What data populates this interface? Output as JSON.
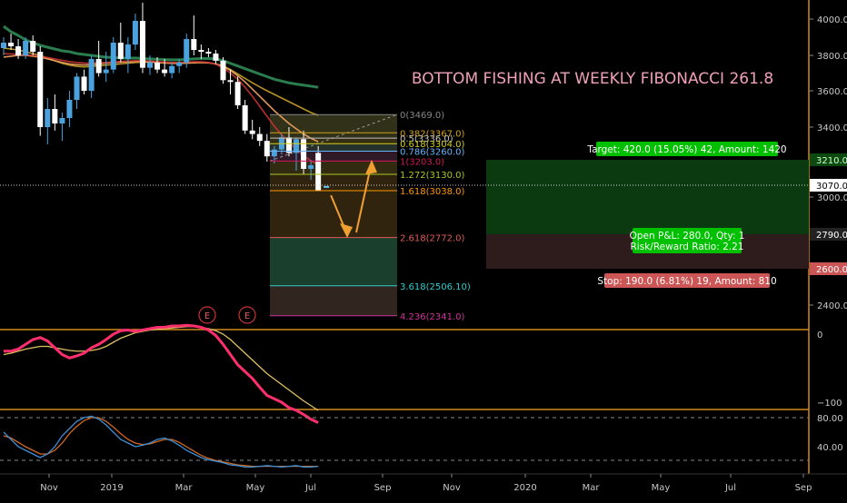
{
  "chart_data": {
    "type": "candlestick",
    "title": "BOTTOM FISHING AT WEEKLY FIBONACCI 261.8",
    "x_tick_labels": [
      "Nov",
      "2019",
      "Mar",
      "May",
      "Jul",
      "Sep",
      "Nov",
      "2020",
      "Mar",
      "May",
      "Jul",
      "Sep"
    ],
    "y_tick_labels": [
      "4000.0",
      "3800.0",
      "3600.0",
      "3400.0",
      "3000.0",
      "2400.0"
    ],
    "ylim": [
      2300,
      4100
    ],
    "candles": [
      {
        "o": 3840,
        "h": 3900,
        "l": 3800,
        "c": 3870
      },
      {
        "o": 3870,
        "h": 3920,
        "l": 3830,
        "c": 3850
      },
      {
        "o": 3850,
        "h": 3890,
        "l": 3780,
        "c": 3800
      },
      {
        "o": 3800,
        "h": 3900,
        "l": 3780,
        "c": 3880
      },
      {
        "o": 3880,
        "h": 3910,
        "l": 3800,
        "c": 3820
      },
      {
        "o": 3820,
        "h": 3850,
        "l": 3350,
        "c": 3400
      },
      {
        "o": 3400,
        "h": 3560,
        "l": 3300,
        "c": 3500
      },
      {
        "o": 3500,
        "h": 3580,
        "l": 3380,
        "c": 3420
      },
      {
        "o": 3420,
        "h": 3480,
        "l": 3320,
        "c": 3450
      },
      {
        "o": 3450,
        "h": 3600,
        "l": 3400,
        "c": 3550
      },
      {
        "o": 3550,
        "h": 3700,
        "l": 3500,
        "c": 3680
      },
      {
        "o": 3680,
        "h": 3720,
        "l": 3580,
        "c": 3600
      },
      {
        "o": 3600,
        "h": 3800,
        "l": 3560,
        "c": 3780
      },
      {
        "o": 3780,
        "h": 3880,
        "l": 3680,
        "c": 3700
      },
      {
        "o": 3700,
        "h": 3820,
        "l": 3650,
        "c": 3720
      },
      {
        "o": 3720,
        "h": 3900,
        "l": 3700,
        "c": 3870
      },
      {
        "o": 3870,
        "h": 3980,
        "l": 3760,
        "c": 3780
      },
      {
        "o": 3780,
        "h": 3900,
        "l": 3700,
        "c": 3860
      },
      {
        "o": 3860,
        "h": 4030,
        "l": 3830,
        "c": 3990
      },
      {
        "o": 3990,
        "h": 4090,
        "l": 3700,
        "c": 3730
      },
      {
        "o": 3730,
        "h": 3800,
        "l": 3690,
        "c": 3760
      },
      {
        "o": 3760,
        "h": 3790,
        "l": 3700,
        "c": 3720
      },
      {
        "o": 3720,
        "h": 3780,
        "l": 3680,
        "c": 3700
      },
      {
        "o": 3700,
        "h": 3760,
        "l": 3670,
        "c": 3740
      },
      {
        "o": 3740,
        "h": 3780,
        "l": 3700,
        "c": 3760
      },
      {
        "o": 3760,
        "h": 3920,
        "l": 3730,
        "c": 3890
      },
      {
        "o": 3890,
        "h": 4020,
        "l": 3800,
        "c": 3830
      },
      {
        "o": 3830,
        "h": 3860,
        "l": 3780,
        "c": 3820
      },
      {
        "o": 3820,
        "h": 3840,
        "l": 3790,
        "c": 3810
      },
      {
        "o": 3810,
        "h": 3830,
        "l": 3750,
        "c": 3770
      },
      {
        "o": 3770,
        "h": 3790,
        "l": 3640,
        "c": 3660
      },
      {
        "o": 3660,
        "h": 3720,
        "l": 3580,
        "c": 3650
      },
      {
        "o": 3650,
        "h": 3680,
        "l": 3500,
        "c": 3520
      },
      {
        "o": 3520,
        "h": 3550,
        "l": 3360,
        "c": 3380
      },
      {
        "o": 3380,
        "h": 3440,
        "l": 3330,
        "c": 3360
      },
      {
        "o": 3360,
        "h": 3400,
        "l": 3290,
        "c": 3320
      },
      {
        "o": 3320,
        "h": 3360,
        "l": 3200,
        "c": 3230
      },
      {
        "o": 3230,
        "h": 3290,
        "l": 3190,
        "c": 3270
      },
      {
        "o": 3270,
        "h": 3360,
        "l": 3240,
        "c": 3340
      },
      {
        "o": 3340,
        "h": 3400,
        "l": 3230,
        "c": 3250
      },
      {
        "o": 3250,
        "h": 3340,
        "l": 3150,
        "c": 3330
      },
      {
        "o": 3330,
        "h": 3380,
        "l": 3130,
        "c": 3160
      },
      {
        "o": 3160,
        "h": 3210,
        "l": 3100,
        "c": 3180
      },
      {
        "o": 3250,
        "h": 3290,
        "l": 3040,
        "c": 3040
      }
    ],
    "moving_averages": [
      {
        "color": "#2e8b57",
        "values": [
          3960,
          3930,
          3910,
          3885,
          3870,
          3855,
          3845,
          3835,
          3825,
          3820,
          3810,
          3805,
          3800,
          3795,
          3790,
          3788,
          3785,
          3784,
          3785,
          3782,
          3780,
          3778,
          3776,
          3775,
          3775,
          3778,
          3780,
          3782,
          3782,
          3780,
          3770,
          3755,
          3740,
          3725,
          3710,
          3695,
          3680,
          3665,
          3655,
          3645,
          3638,
          3632,
          3626,
          3620
        ]
      },
      {
        "color": "#c9a227",
        "values": [
          3840,
          3835,
          3830,
          3820,
          3810,
          3800,
          3785,
          3770,
          3755,
          3745,
          3738,
          3735,
          3738,
          3742,
          3745,
          3748,
          3752,
          3756,
          3760,
          3762,
          3762,
          3760,
          3758,
          3757,
          3757,
          3758,
          3760,
          3760,
          3758,
          3752,
          3740,
          3720,
          3695,
          3670,
          3645,
          3622,
          3600,
          3580,
          3560,
          3540,
          3520,
          3500,
          3480,
          3465
        ]
      },
      {
        "color": "#f4a460",
        "values": [
          3790,
          3795,
          3800,
          3800,
          3795,
          3790,
          3780,
          3770,
          3760,
          3752,
          3748,
          3746,
          3748,
          3752,
          3756,
          3760,
          3762,
          3764,
          3766,
          3766,
          3764,
          3760,
          3757,
          3755,
          3754,
          3756,
          3758,
          3760,
          3758,
          3752,
          3738,
          3715,
          3685,
          3650,
          3610,
          3570,
          3530,
          3490,
          3455,
          3420,
          3390,
          3360,
          3335,
          3315
        ]
      },
      {
        "color": "#cc3333",
        "values": [
          3810,
          3808,
          3806,
          3803,
          3800,
          3795,
          3788,
          3780,
          3772,
          3765,
          3760,
          3757,
          3756,
          3758,
          3760,
          3763,
          3766,
          3768,
          3770,
          3770,
          3768,
          3765,
          3762,
          3760,
          3760,
          3762,
          3764,
          3764,
          3760,
          3750,
          3730,
          3700,
          3665,
          3620,
          3570,
          3515,
          3460,
          3405,
          3355,
          3310,
          3270,
          3235,
          3205,
          3180
        ]
      }
    ],
    "fibonacci": {
      "levels": [
        {
          "label": "0(3469.0)",
          "price": 3469.0,
          "color": "#888888"
        },
        {
          "label": "0.382(3367.0)",
          "price": 3367.0,
          "color": "#d4a017"
        },
        {
          "label": "0.5(3336.0)",
          "price": 3336.0,
          "color": "#c0c0c0"
        },
        {
          "label": "0.618(3304.0)",
          "price": 3304.0,
          "color": "#d4d017"
        },
        {
          "label": "0.786(3260.0)",
          "price": 3260.0,
          "color": "#66b3ff"
        },
        {
          "label": "1(3203.0)",
          "price": 3203.0,
          "color": "#d4145a"
        },
        {
          "label": "1.272(3130.0)",
          "price": 3130.0,
          "color": "#a8c820"
        },
        {
          "label": "1.618(3038.0)",
          "price": 3038.0,
          "color": "#ff9900"
        },
        {
          "label": "2.618(2772.0)",
          "price": 2772.0,
          "color": "#e05a5a"
        },
        {
          "label": "3.618(2506.10)",
          "price": 2506.1,
          "color": "#33cccc"
        },
        {
          "label": "4.236(2341.0)",
          "price": 2341.0,
          "color": "#cc3399"
        }
      ]
    },
    "position": {
      "target_label": "Target: 420.0 (15.05%) 42, Amount: 1420",
      "pnl_label": "Open P&L: 280.0, Qty: 1",
      "rr_label": "Risk/Reward Ratio: 2.21",
      "stop_label": "Stop: 190.0 (6.81%) 19, Amount: 810",
      "target_price": 3210.0,
      "entry_price": 2790.0,
      "stop_price": 2600.0,
      "target_price_label": "3210.0",
      "entry_price_label": "2790.0",
      "stop_price_label": "2600.0"
    },
    "current_price": 3070.0,
    "current_price_label": "3070.0",
    "earnings_marker": "E",
    "oscillator1": {
      "y_tick_labels": [
        "0",
        "−100"
      ],
      "ylim": [
        -160,
        20
      ],
      "fast": {
        "color": "#ff2e6e",
        "values": [
          -25,
          -25,
          -22,
          -15,
          -8,
          -5,
          -10,
          -20,
          -30,
          -35,
          -32,
          -28,
          -20,
          -15,
          -8,
          0,
          5,
          6,
          4,
          6,
          8,
          10,
          10,
          12,
          12,
          13,
          12,
          10,
          6,
          -2,
          -15,
          -30,
          -45,
          -55,
          -65,
          -78,
          -90,
          -95,
          -100,
          -108,
          -112,
          -118,
          -125,
          -130
        ]
      },
      "slow": {
        "color": "#e0c060",
        "values": [
          -30,
          -28,
          -25,
          -22,
          -20,
          -18,
          -18,
          -20,
          -22,
          -24,
          -25,
          -25,
          -24,
          -22,
          -18,
          -12,
          -6,
          -2,
          2,
          4,
          6,
          7,
          8,
          9,
          10,
          11,
          11,
          10,
          8,
          5,
          0,
          -8,
          -18,
          -28,
          -38,
          -48,
          -58,
          -66,
          -74,
          -82,
          -90,
          -98,
          -105,
          -112
        ]
      }
    },
    "oscillator2": {
      "y_tick_labels": [
        "80.00",
        "40.00"
      ],
      "ylim": [
        0,
        100
      ],
      "upper_level": 80,
      "lower_level": 20,
      "k": {
        "color": "#3d8fd6",
        "values": [
          60,
          50,
          40,
          35,
          30,
          25,
          30,
          40,
          55,
          65,
          75,
          80,
          82,
          78,
          70,
          60,
          50,
          45,
          40,
          42,
          45,
          50,
          52,
          48,
          42,
          35,
          30,
          25,
          22,
          20,
          18,
          15,
          14,
          12,
          12,
          13,
          14,
          13,
          12,
          13,
          14,
          12,
          12,
          13
        ]
      },
      "d": {
        "color": "#d2691e",
        "values": [
          55,
          52,
          46,
          40,
          35,
          30,
          30,
          35,
          45,
          58,
          68,
          76,
          80,
          80,
          75,
          67,
          58,
          50,
          45,
          43,
          44,
          47,
          50,
          50,
          46,
          40,
          34,
          28,
          24,
          21,
          19,
          17,
          15,
          14,
          13,
          13,
          13,
          13,
          13,
          13,
          13,
          13,
          13,
          13
        ]
      }
    }
  }
}
